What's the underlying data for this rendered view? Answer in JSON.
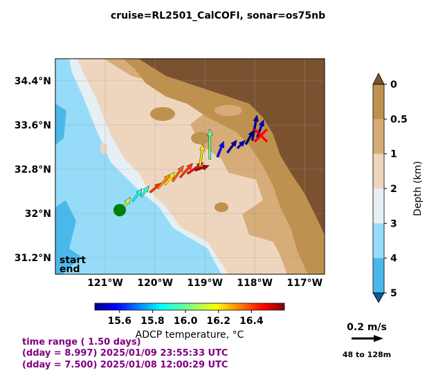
{
  "title": "cruise=RL2501_CalCOFI,   sonar=os75nb",
  "chart_data": {
    "type": "vector-map",
    "map": {
      "lon_range": [
        -122.0,
        -116.6
      ],
      "lat_range": [
        30.9,
        34.8
      ],
      "lon_ticks": [
        {
          "value": -121,
          "label": "121°W"
        },
        {
          "value": -120,
          "label": "120°W"
        },
        {
          "value": -119,
          "label": "119°W"
        },
        {
          "value": -118,
          "label": "118°W"
        },
        {
          "value": -117,
          "label": "117°W"
        }
      ],
      "lat_ticks": [
        {
          "value": 34.4,
          "label": "34.4°N"
        },
        {
          "value": 33.6,
          "label": "33.6°N"
        },
        {
          "value": 32.8,
          "label": "32.8°N"
        },
        {
          "value": 32.0,
          "label": "32°N"
        },
        {
          "value": 31.2,
          "label": "31.2°N"
        }
      ],
      "grid": true
    },
    "track": {
      "start": {
        "lon": -120.71,
        "lat": 32.06
      },
      "end": {
        "lon": -117.88,
        "lat": 33.41
      },
      "vectors": [
        {
          "lon": -120.62,
          "lat": 32.12,
          "u": 0.04,
          "v": 0.06,
          "t": 16.1
        },
        {
          "lon": -120.45,
          "lat": 32.22,
          "u": 0.06,
          "v": 0.08,
          "t": 15.9
        },
        {
          "lon": -120.28,
          "lat": 32.3,
          "u": 0.05,
          "v": 0.07,
          "t": 15.95
        },
        {
          "lon": -120.1,
          "lat": 32.38,
          "u": 0.07,
          "v": 0.06,
          "t": 16.4
        },
        {
          "lon": -119.95,
          "lat": 32.45,
          "u": 0.08,
          "v": 0.09,
          "t": 16.3
        },
        {
          "lon": -119.8,
          "lat": 32.52,
          "u": 0.06,
          "v": 0.08,
          "t": 16.2
        },
        {
          "lon": -119.65,
          "lat": 32.58,
          "u": 0.07,
          "v": 0.1,
          "t": 16.35
        },
        {
          "lon": -119.5,
          "lat": 32.65,
          "u": 0.08,
          "v": 0.09,
          "t": 16.4
        },
        {
          "lon": -119.35,
          "lat": 32.72,
          "u": 0.1,
          "v": 0.07,
          "t": 16.45
        },
        {
          "lon": -119.2,
          "lat": 32.78,
          "u": 0.09,
          "v": 0.03,
          "t": 16.55
        },
        {
          "lon": -119.1,
          "lat": 32.85,
          "u": 0.02,
          "v": 0.14,
          "t": 16.2
        },
        {
          "lon": -118.9,
          "lat": 32.98,
          "u": 0.0,
          "v": 0.19,
          "t": 16.0
        },
        {
          "lon": -118.75,
          "lat": 33.02,
          "u": 0.04,
          "v": 0.1,
          "t": 15.6
        },
        {
          "lon": -118.55,
          "lat": 33.1,
          "u": 0.06,
          "v": 0.08,
          "t": 15.5
        },
        {
          "lon": -118.35,
          "lat": 33.18,
          "u": 0.05,
          "v": 0.05,
          "t": 15.55
        },
        {
          "lon": -118.18,
          "lat": 33.25,
          "u": 0.05,
          "v": 0.09,
          "t": 15.45
        },
        {
          "lon": -118.05,
          "lat": 33.32,
          "u": 0.03,
          "v": 0.16,
          "t": 15.5
        },
        {
          "lon": -117.95,
          "lat": 33.38,
          "u": 0.04,
          "v": 0.11,
          "t": 15.55
        }
      ]
    },
    "temperature_colorbar": {
      "label": "ADCP temperature, °C",
      "range": [
        15.45,
        16.6
      ],
      "ticks": [
        15.6,
        15.8,
        16.0,
        16.2,
        16.4
      ],
      "tick_labels": [
        "15.6",
        "15.8",
        "16.0",
        "16.2",
        "16.4"
      ],
      "colormap": "jet"
    },
    "depth_colorbar": {
      "label": "Depth (km)",
      "levels": [
        0,
        0.5,
        1,
        2,
        3,
        4,
        5
      ],
      "tick_labels": [
        "0",
        "0.5",
        "1",
        "2",
        "3",
        "4",
        "5"
      ],
      "colors": [
        "#bf914f",
        "#d6ac78",
        "#eed6be",
        "#e6eff4",
        "#96dcf8",
        "#4bb8ea"
      ],
      "extend": "both",
      "extend_colors": [
        "#7a5230",
        "#0a5aa0"
      ]
    },
    "terrain_colors": {
      "land": "#7a5230",
      "shelf": "#bf914f",
      "slope": "#d6ac78",
      "basin": "#eed6be",
      "deep": "#96dcf8",
      "deepest": "#4bb8ea"
    }
  },
  "legend": {
    "start": "start",
    "end": "end",
    "start_color": "#008000",
    "end_color": "#ff0000"
  },
  "scale_arrow": {
    "value": 0.2,
    "label": "0.2 m/s",
    "depth_range": "48 to 128m"
  },
  "info": {
    "line1": "time range ( 1.50 days)",
    "line2": "(dday = 8.997) 2025/01/09 23:55:33 UTC",
    "line3": "(dday = 7.500) 2025/01/08 12:00:29 UTC",
    "color": "#800080"
  }
}
